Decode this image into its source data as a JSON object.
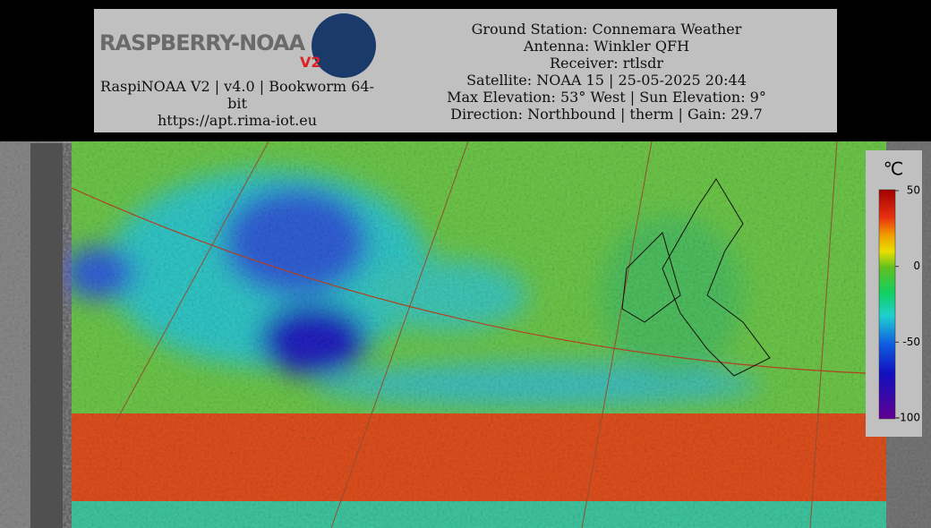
{
  "header": {
    "logo_text": "RASPBERRY-NOAA",
    "logo_badge": "V2",
    "software": "RaspiNOAA V2 | v4.0 | Bookworm 64-bit",
    "url": "https://apt.rima-iot.eu",
    "details": [
      "Ground Station: Connemara Weather",
      "Antenna: Winkler QFH",
      "Receiver: rtlsdr",
      "Satellite: NOAA 15 | 25-05-2025 20:44",
      "Max Elevation: 53° West | Sun Elevation: 9°",
      "Direction: Northbound | therm | Gain: 29.7"
    ]
  },
  "colorbar": {
    "unit": "℃",
    "ticks": [
      50,
      0,
      -50,
      -100
    ]
  }
}
